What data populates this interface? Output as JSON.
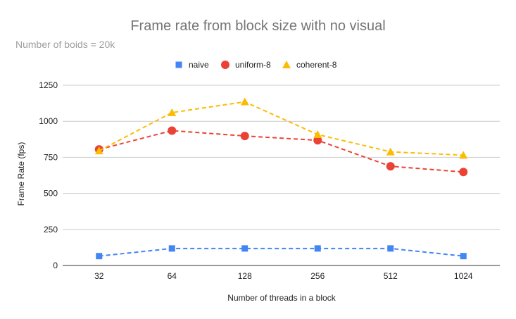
{
  "chart_data": {
    "type": "line",
    "title": "Frame rate from block size with no visual",
    "subtitle": "Number of boids = 20k",
    "xlabel": "Number of threads in a block",
    "ylabel": "Frame Rate (fps)",
    "categories": [
      "32",
      "64",
      "128",
      "256",
      "512",
      "1024"
    ],
    "ylim": [
      0,
      1250
    ],
    "yticks": [
      0,
      250,
      500,
      750,
      1000,
      1250
    ],
    "grid": true,
    "legend_position": "top",
    "series": [
      {
        "name": "naive",
        "marker": "square",
        "color": "#4285f4",
        "values": [
          65,
          118,
          118,
          118,
          118,
          65
        ]
      },
      {
        "name": "uniform-8",
        "marker": "circle",
        "color": "#ea4335",
        "values": [
          805,
          935,
          898,
          868,
          688,
          648
        ]
      },
      {
        "name": "coherent-8",
        "marker": "triangle",
        "color": "#fbbc04",
        "values": [
          795,
          1060,
          1135,
          908,
          788,
          765
        ]
      }
    ]
  }
}
